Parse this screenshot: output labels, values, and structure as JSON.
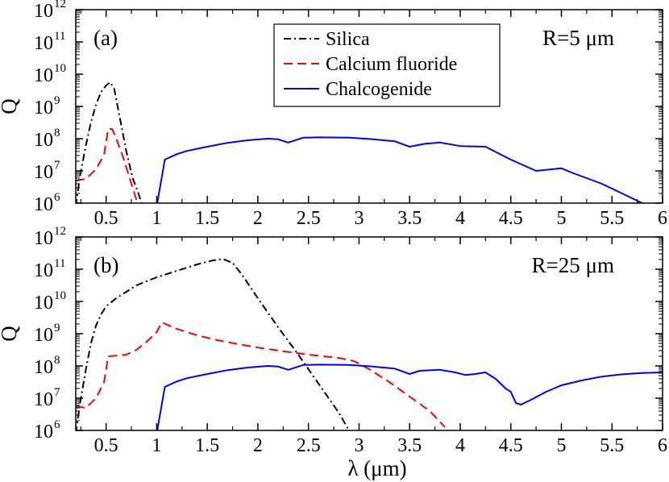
{
  "figure": {
    "xlabel": "λ (μm)"
  },
  "chart_data": [
    {
      "type": "line",
      "panel_label": "(a)",
      "annotation": "R=5 μm",
      "ylabel": "Q",
      "xlabel": "",
      "xlim": [
        0.2,
        6
      ],
      "ylim_log10": [
        6,
        12
      ],
      "yscale": "log",
      "x_tick_labels": [
        "0.5",
        "1",
        "1.5",
        "2",
        "2.5",
        "3",
        "3.5",
        "4",
        "4.5",
        "5",
        "5.5",
        "6"
      ],
      "y_tick_labels": [
        {
          "base": "10",
          "exp": "6"
        },
        {
          "base": "10",
          "exp": "7"
        },
        {
          "base": "10",
          "exp": "8"
        },
        {
          "base": "10",
          "exp": "9"
        },
        {
          "base": "10",
          "exp": "10"
        },
        {
          "base": "10",
          "exp": "11"
        },
        {
          "base": "10",
          "exp": "12"
        }
      ],
      "legend": {
        "position": "top-center",
        "entries": [
          "Silica",
          "Calcium fluoride",
          "Chalcogenide"
        ]
      },
      "series": [
        {
          "name": "Silica",
          "color": "#000000",
          "style": "dash-dot",
          "points": [
            [
              0.2,
              5.9
            ],
            [
              0.24,
              6.8
            ],
            [
              0.3,
              7.8
            ],
            [
              0.35,
              8.5
            ],
            [
              0.4,
              9.05
            ],
            [
              0.45,
              9.45
            ],
            [
              0.5,
              9.65
            ],
            [
              0.54,
              9.75
            ],
            [
              0.58,
              9.55
            ],
            [
              0.62,
              8.9
            ],
            [
              0.7,
              7.6
            ],
            [
              0.76,
              6.8
            ],
            [
              0.82,
              6.3
            ],
            [
              0.86,
              5.9
            ]
          ]
        },
        {
          "name": "Calcium fluoride",
          "color": "#ff0000",
          "style": "dashed",
          "points": [
            [
              0.2,
              6.7
            ],
            [
              0.3,
              6.75
            ],
            [
              0.4,
              7.05
            ],
            [
              0.48,
              7.5
            ],
            [
              0.52,
              8.3
            ],
            [
              0.56,
              8.3
            ],
            [
              0.6,
              8.0
            ],
            [
              0.66,
              7.5
            ],
            [
              0.72,
              6.9
            ],
            [
              0.76,
              6.5
            ],
            [
              0.8,
              6.1
            ]
          ]
        },
        {
          "name": "Chalcogenide",
          "color": "#0000ff",
          "style": "solid",
          "points": [
            [
              1.0,
              5.9
            ],
            [
              1.08,
              7.35
            ],
            [
              1.2,
              7.52
            ],
            [
              1.3,
              7.62
            ],
            [
              1.5,
              7.75
            ],
            [
              1.7,
              7.87
            ],
            [
              1.9,
              7.95
            ],
            [
              2.1,
              8.0
            ],
            [
              2.2,
              7.98
            ],
            [
              2.3,
              7.88
            ],
            [
              2.45,
              8.03
            ],
            [
              2.6,
              8.04
            ],
            [
              2.9,
              8.03
            ],
            [
              3.1,
              7.99
            ],
            [
              3.35,
              7.92
            ],
            [
              3.5,
              7.75
            ],
            [
              3.65,
              7.84
            ],
            [
              3.8,
              7.88
            ],
            [
              4.0,
              7.77
            ],
            [
              4.25,
              7.75
            ],
            [
              4.5,
              7.35
            ],
            [
              4.75,
              7.0
            ],
            [
              5.0,
              7.08
            ],
            [
              5.1,
              6.95
            ],
            [
              5.4,
              6.6
            ],
            [
              5.8,
              6.0
            ]
          ]
        }
      ]
    },
    {
      "type": "line",
      "panel_label": "(b)",
      "annotation": "R=25 μm",
      "ylabel": "Q",
      "xlabel": "λ (μm)",
      "xlim": [
        0.2,
        6
      ],
      "ylim_log10": [
        6,
        12
      ],
      "yscale": "log",
      "x_tick_labels": [
        "0.5",
        "1",
        "1.5",
        "2",
        "2.5",
        "3",
        "3.5",
        "4",
        "4.5",
        "5",
        "5.5",
        "6"
      ],
      "y_tick_labels": [
        {
          "base": "10",
          "exp": "6"
        },
        {
          "base": "10",
          "exp": "7"
        },
        {
          "base": "10",
          "exp": "8"
        },
        {
          "base": "10",
          "exp": "9"
        },
        {
          "base": "10",
          "exp": "10"
        },
        {
          "base": "10",
          "exp": "11"
        },
        {
          "base": "10",
          "exp": "12"
        }
      ],
      "series": [
        {
          "name": "Silica",
          "color": "#000000",
          "style": "dash-dot",
          "points": [
            [
              0.2,
              5.9
            ],
            [
              0.24,
              6.8
            ],
            [
              0.3,
              7.9
            ],
            [
              0.35,
              8.7
            ],
            [
              0.4,
              9.25
            ],
            [
              0.45,
              9.6
            ],
            [
              0.5,
              9.85
            ],
            [
              0.6,
              10.1
            ],
            [
              0.8,
              10.5
            ],
            [
              1.0,
              10.75
            ],
            [
              1.2,
              10.95
            ],
            [
              1.4,
              11.15
            ],
            [
              1.55,
              11.27
            ],
            [
              1.65,
              11.32
            ],
            [
              1.75,
              11.2
            ],
            [
              1.85,
              10.8
            ],
            [
              2.0,
              10.1
            ],
            [
              2.2,
              9.2
            ],
            [
              2.4,
              8.35
            ],
            [
              2.6,
              7.45
            ],
            [
              2.8,
              6.55
            ],
            [
              2.9,
              6.0
            ]
          ]
        },
        {
          "name": "Calcium fluoride",
          "color": "#ff0000",
          "style": "dashed",
          "points": [
            [
              0.2,
              6.75
            ],
            [
              0.3,
              6.7
            ],
            [
              0.4,
              7.0
            ],
            [
              0.48,
              7.5
            ],
            [
              0.52,
              8.3
            ],
            [
              0.6,
              8.32
            ],
            [
              0.7,
              8.35
            ],
            [
              0.8,
              8.5
            ],
            [
              0.9,
              8.75
            ],
            [
              1.0,
              9.05
            ],
            [
              1.05,
              9.35
            ],
            [
              1.2,
              9.15
            ],
            [
              1.4,
              8.95
            ],
            [
              1.6,
              8.8
            ],
            [
              1.8,
              8.68
            ],
            [
              2.0,
              8.57
            ],
            [
              2.2,
              8.48
            ],
            [
              2.5,
              8.35
            ],
            [
              2.8,
              8.25
            ],
            [
              2.95,
              8.15
            ],
            [
              3.1,
              7.9
            ],
            [
              3.3,
              7.5
            ],
            [
              3.5,
              7.05
            ],
            [
              3.7,
              6.6
            ],
            [
              3.85,
              6.1
            ]
          ]
        },
        {
          "name": "Chalcogenide",
          "color": "#0000ff",
          "style": "solid",
          "points": [
            [
              1.0,
              5.9
            ],
            [
              1.08,
              7.35
            ],
            [
              1.2,
              7.52
            ],
            [
              1.3,
              7.62
            ],
            [
              1.5,
              7.75
            ],
            [
              1.7,
              7.87
            ],
            [
              1.9,
              7.95
            ],
            [
              2.1,
              8.0
            ],
            [
              2.2,
              7.98
            ],
            [
              2.3,
              7.88
            ],
            [
              2.45,
              8.03
            ],
            [
              2.6,
              8.04
            ],
            [
              2.9,
              8.03
            ],
            [
              3.1,
              7.99
            ],
            [
              3.35,
              7.92
            ],
            [
              3.5,
              7.75
            ],
            [
              3.6,
              7.85
            ],
            [
              3.8,
              7.88
            ],
            [
              3.95,
              7.8
            ],
            [
              4.05,
              7.72
            ],
            [
              4.15,
              7.75
            ],
            [
              4.25,
              7.8
            ],
            [
              4.35,
              7.6
            ],
            [
              4.45,
              7.3
            ],
            [
              4.5,
              7.2
            ],
            [
              4.55,
              6.85
            ],
            [
              4.6,
              6.8
            ],
            [
              4.7,
              6.95
            ],
            [
              4.85,
              7.2
            ],
            [
              5.0,
              7.4
            ],
            [
              5.2,
              7.55
            ],
            [
              5.4,
              7.67
            ],
            [
              5.6,
              7.74
            ],
            [
              5.8,
              7.78
            ],
            [
              6.0,
              7.8
            ]
          ]
        }
      ]
    }
  ]
}
